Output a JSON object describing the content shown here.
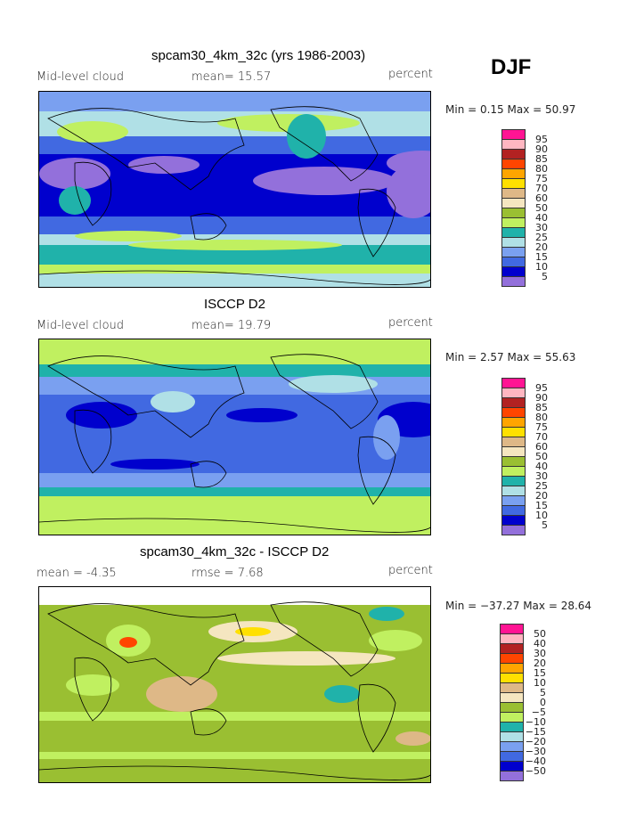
{
  "season": "DJF",
  "panels": [
    {
      "title": "spcam30_4km_32c (yrs 1986-2003)",
      "left_label": "Mid-level cloud",
      "center_label": "mean=   15.57",
      "units": "percent",
      "minmax": "Min =    0.15 Max =   50.97",
      "levels": [
        "95",
        "90",
        "85",
        "80",
        "75",
        "70",
        "60",
        "50",
        "40",
        "30",
        "25",
        "20",
        "15",
        "10",
        "5"
      ]
    },
    {
      "title": "ISCCP D2",
      "left_label": "Mid-level cloud",
      "center_label": "mean=   19.79",
      "units": "percent",
      "minmax": "Min =    2.57 Max =   55.63",
      "levels": [
        "95",
        "90",
        "85",
        "80",
        "75",
        "70",
        "60",
        "50",
        "40",
        "30",
        "25",
        "20",
        "15",
        "10",
        "5"
      ]
    },
    {
      "title": "spcam30_4km_32c - ISCCP D2",
      "left_label": "mean =   -4.35",
      "center_label": "rmse =    7.68",
      "units": "percent",
      "minmax": "Min = −37.27 Max =   28.64",
      "levels": [
        "50",
        "40",
        "30",
        "20",
        "15",
        "10",
        "5",
        "0",
        "−5",
        "−10",
        "−15",
        "−20",
        "−30",
        "−40",
        "−50"
      ]
    }
  ],
  "colors": [
    "#ff1493",
    "#ffb6c1",
    "#b22222",
    "#ff4500",
    "#ffa500",
    "#ffe000",
    "#deb887",
    "#f5e6c0",
    "#9abf32",
    "#c0f060",
    "#20b2aa",
    "#b0e0e6",
    "#7aa0f0",
    "#4169e1",
    "#0000cd",
    "#9370db"
  ]
}
